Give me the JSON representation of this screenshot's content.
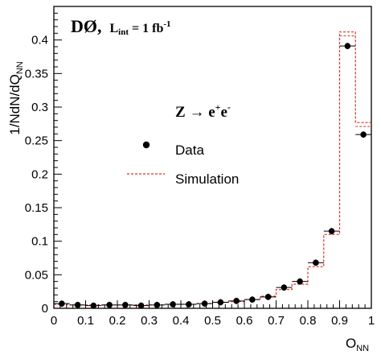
{
  "chart_data": {
    "type": "scatter",
    "x_bin_edges": [
      0,
      0.05,
      0.1,
      0.15,
      0.2,
      0.25,
      0.3,
      0.35,
      0.4,
      0.45,
      0.5,
      0.55,
      0.6,
      0.65,
      0.7,
      0.75,
      0.8,
      0.85,
      0.9,
      0.95,
      1.0
    ],
    "series": [
      {
        "name": "Data",
        "style": "markers",
        "color": "#000000",
        "x": [
          0.025,
          0.075,
          0.125,
          0.175,
          0.225,
          0.275,
          0.325,
          0.375,
          0.425,
          0.475,
          0.525,
          0.575,
          0.625,
          0.675,
          0.725,
          0.775,
          0.825,
          0.875,
          0.925,
          0.975
        ],
        "values": [
          0.007,
          0.005,
          0.004,
          0.005,
          0.005,
          0.004,
          0.005,
          0.006,
          0.006,
          0.007,
          0.009,
          0.011,
          0.013,
          0.017,
          0.031,
          0.04,
          0.068,
          0.115,
          0.391,
          0.259
        ]
      },
      {
        "name": "Simulation",
        "style": "dashed-step",
        "color": "#e03020",
        "values": [
          0.006,
          0.005,
          0.005,
          0.005,
          0.005,
          0.005,
          0.005,
          0.006,
          0.006,
          0.007,
          0.009,
          0.01,
          0.013,
          0.018,
          0.028,
          0.036,
          0.062,
          0.11,
          0.412,
          0.277
        ]
      }
    ],
    "xlim": [
      0,
      1
    ],
    "ylim": [
      0,
      0.45
    ],
    "x_ticks": [
      "0",
      "0.1",
      "0.2",
      "0.3",
      "0.4",
      "0.5",
      "0.6",
      "0.7",
      "0.8",
      "0.9",
      "1"
    ],
    "x_tick_values": [
      0,
      0.1,
      0.2,
      0.3,
      0.4,
      0.5,
      0.6,
      0.7,
      0.8,
      0.9,
      1.0
    ],
    "y_ticks": [
      "0",
      "0.05",
      "0.1",
      "0.15",
      "0.2",
      "0.25",
      "0.3",
      "0.35",
      "0.4"
    ],
    "y_tick_values": [
      0,
      0.05,
      0.1,
      0.15,
      0.2,
      0.25,
      0.3,
      0.35,
      0.4
    ],
    "xlabel": {
      "main": "O",
      "sub": "NN"
    },
    "ylabel": {
      "main": "1/NdN/dQ",
      "sub": "NN"
    },
    "experiment_label": {
      "main": "DØ,",
      "lumi_L": "L",
      "lumi_sub": "int",
      "lumi_eq": " = 1 fb",
      "lumi_sup": "-1"
    },
    "process_label": {
      "main": "Z",
      "arrow": " → e",
      "sup1": "+",
      "mid": "e",
      "sup2": "-"
    },
    "legend": {
      "position": "middle-left",
      "entries": [
        {
          "label": "Data",
          "marker": "dot"
        },
        {
          "label": "Simulation",
          "marker": "dashed-line"
        }
      ]
    },
    "grid": false
  }
}
